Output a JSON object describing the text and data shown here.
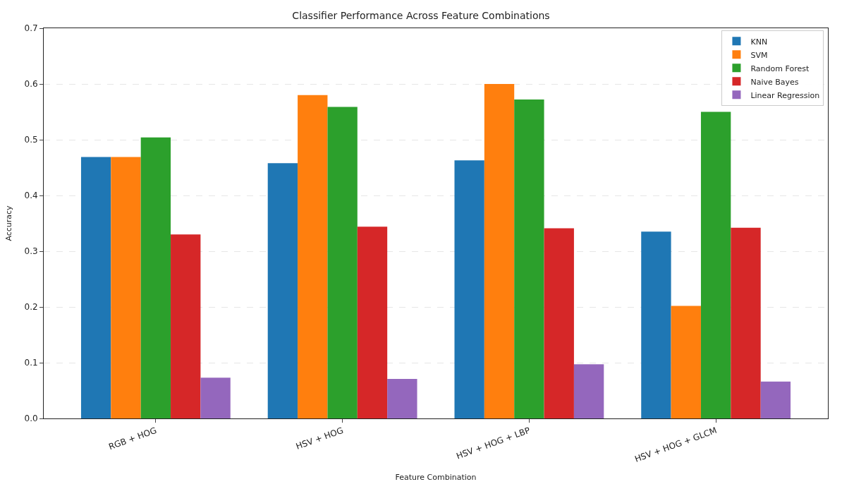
{
  "chart_data": {
    "type": "bar",
    "title": "Classifier Performance Across Feature Combinations",
    "xlabel": "Feature Combination",
    "ylabel": "Accuracy",
    "categories": [
      "RGB + HOG",
      "HSV + HOG",
      "HSV + HOG + LBP",
      "HSV + HOG + GLCM"
    ],
    "series": [
      {
        "name": "KNN",
        "color": "#1f77b4",
        "values": [
          0.469,
          0.458,
          0.463,
          0.335
        ]
      },
      {
        "name": "SVM",
        "color": "#ff7f0e",
        "values": [
          0.469,
          0.58,
          0.6,
          0.202
        ]
      },
      {
        "name": "Random Forest",
        "color": "#2ca02c",
        "values": [
          0.504,
          0.559,
          0.572,
          0.55
        ]
      },
      {
        "name": "Naive Bayes",
        "color": "#d62728",
        "values": [
          0.33,
          0.344,
          0.341,
          0.342
        ]
      },
      {
        "name": "Linear Regression",
        "color": "#9467bd",
        "values": [
          0.073,
          0.071,
          0.097,
          0.066
        ]
      }
    ],
    "ylim": [
      0,
      0.7
    ],
    "yticks": [
      {
        "value": 0,
        "label": "0.0"
      },
      0.1,
      0.2,
      0.3,
      0.4,
      0.5,
      0.6,
      0.7
    ],
    "grid": "y",
    "legend": "top right"
  }
}
